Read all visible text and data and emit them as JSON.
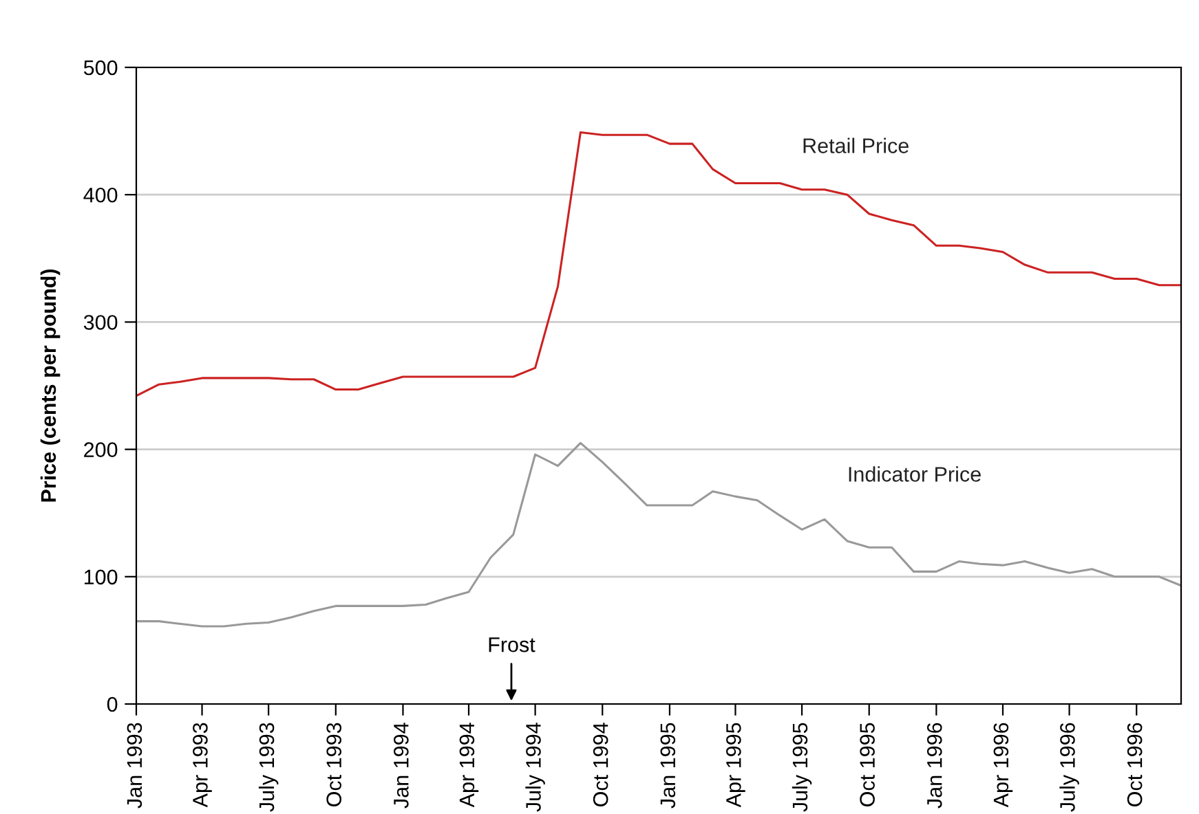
{
  "chart_data": {
    "type": "line",
    "ylabel": "Price (cents per pound)",
    "x": [
      "1993-01",
      "1993-02",
      "1993-03",
      "1993-04",
      "1993-05",
      "1993-06",
      "1993-07",
      "1993-08",
      "1993-09",
      "1993-10",
      "1993-11",
      "1993-12",
      "1994-01",
      "1994-02",
      "1994-03",
      "1994-04",
      "1994-05",
      "1994-06",
      "1994-07",
      "1994-08",
      "1994-09",
      "1994-10",
      "1994-11",
      "1994-12",
      "1995-01",
      "1995-02",
      "1995-03",
      "1995-04",
      "1995-05",
      "1995-06",
      "1995-07",
      "1995-08",
      "1995-09",
      "1995-10",
      "1995-11",
      "1995-12",
      "1996-01",
      "1996-02",
      "1996-03",
      "1996-04",
      "1996-05",
      "1996-06",
      "1996-07",
      "1996-08",
      "1996-09",
      "1996-10",
      "1996-11",
      "1996-12"
    ],
    "series": [
      {
        "name": "Retail Price",
        "color": "#cc2222",
        "values": [
          242,
          251,
          253,
          256,
          256,
          256,
          256,
          255,
          255,
          247,
          247,
          252,
          257,
          257,
          257,
          257,
          257,
          257,
          264,
          328,
          449,
          447,
          447,
          447,
          440,
          440,
          420,
          409,
          409,
          409,
          404,
          404,
          400,
          385,
          380,
          376,
          360,
          360,
          358,
          355,
          345,
          339,
          339,
          339,
          334,
          334,
          329,
          329
        ]
      },
      {
        "name": "Indicator Price",
        "color": "#999999",
        "values": [
          65,
          65,
          63,
          61,
          61,
          63,
          64,
          68,
          73,
          77,
          77,
          77,
          77,
          78,
          83,
          88,
          115,
          133,
          196,
          187,
          205,
          190,
          173,
          156,
          156,
          156,
          167,
          163,
          160,
          148,
          137,
          145,
          128,
          123,
          123,
          104,
          104,
          112,
          110,
          109,
          112,
          107,
          103,
          106,
          100,
          100,
          100,
          93
        ]
      }
    ],
    "xlim": [
      "1993-01",
      "1996-12"
    ],
    "xticks": [
      {
        "value": "1993-01",
        "label": "Jan 1993"
      },
      {
        "value": "1993-04",
        "label": "Apr 1993"
      },
      {
        "value": "1993-07",
        "label": "July 1993"
      },
      {
        "value": "1993-10",
        "label": "Oct 1993"
      },
      {
        "value": "1994-01",
        "label": "Jan 1994"
      },
      {
        "value": "1994-04",
        "label": "Apr 1994"
      },
      {
        "value": "1994-07",
        "label": "July 1994"
      },
      {
        "value": "1994-10",
        "label": "Oct 1994"
      },
      {
        "value": "1995-01",
        "label": "Jan 1995"
      },
      {
        "value": "1995-04",
        "label": "Apr 1995"
      },
      {
        "value": "1995-07",
        "label": "July 1995"
      },
      {
        "value": "1995-10",
        "label": "Oct 1995"
      },
      {
        "value": "1996-01",
        "label": "Jan 1996"
      },
      {
        "value": "1996-04",
        "label": "Apr 1996"
      },
      {
        "value": "1996-07",
        "label": "July 1996"
      },
      {
        "value": "1996-10",
        "label": "Oct 1996"
      }
    ],
    "ylim": [
      0,
      500
    ],
    "yticks": [
      0,
      100,
      200,
      300,
      400,
      500
    ],
    "grid": "y",
    "legend": false,
    "marker": "none",
    "line_style": "solid",
    "annotations": [
      "Frost"
    ]
  }
}
